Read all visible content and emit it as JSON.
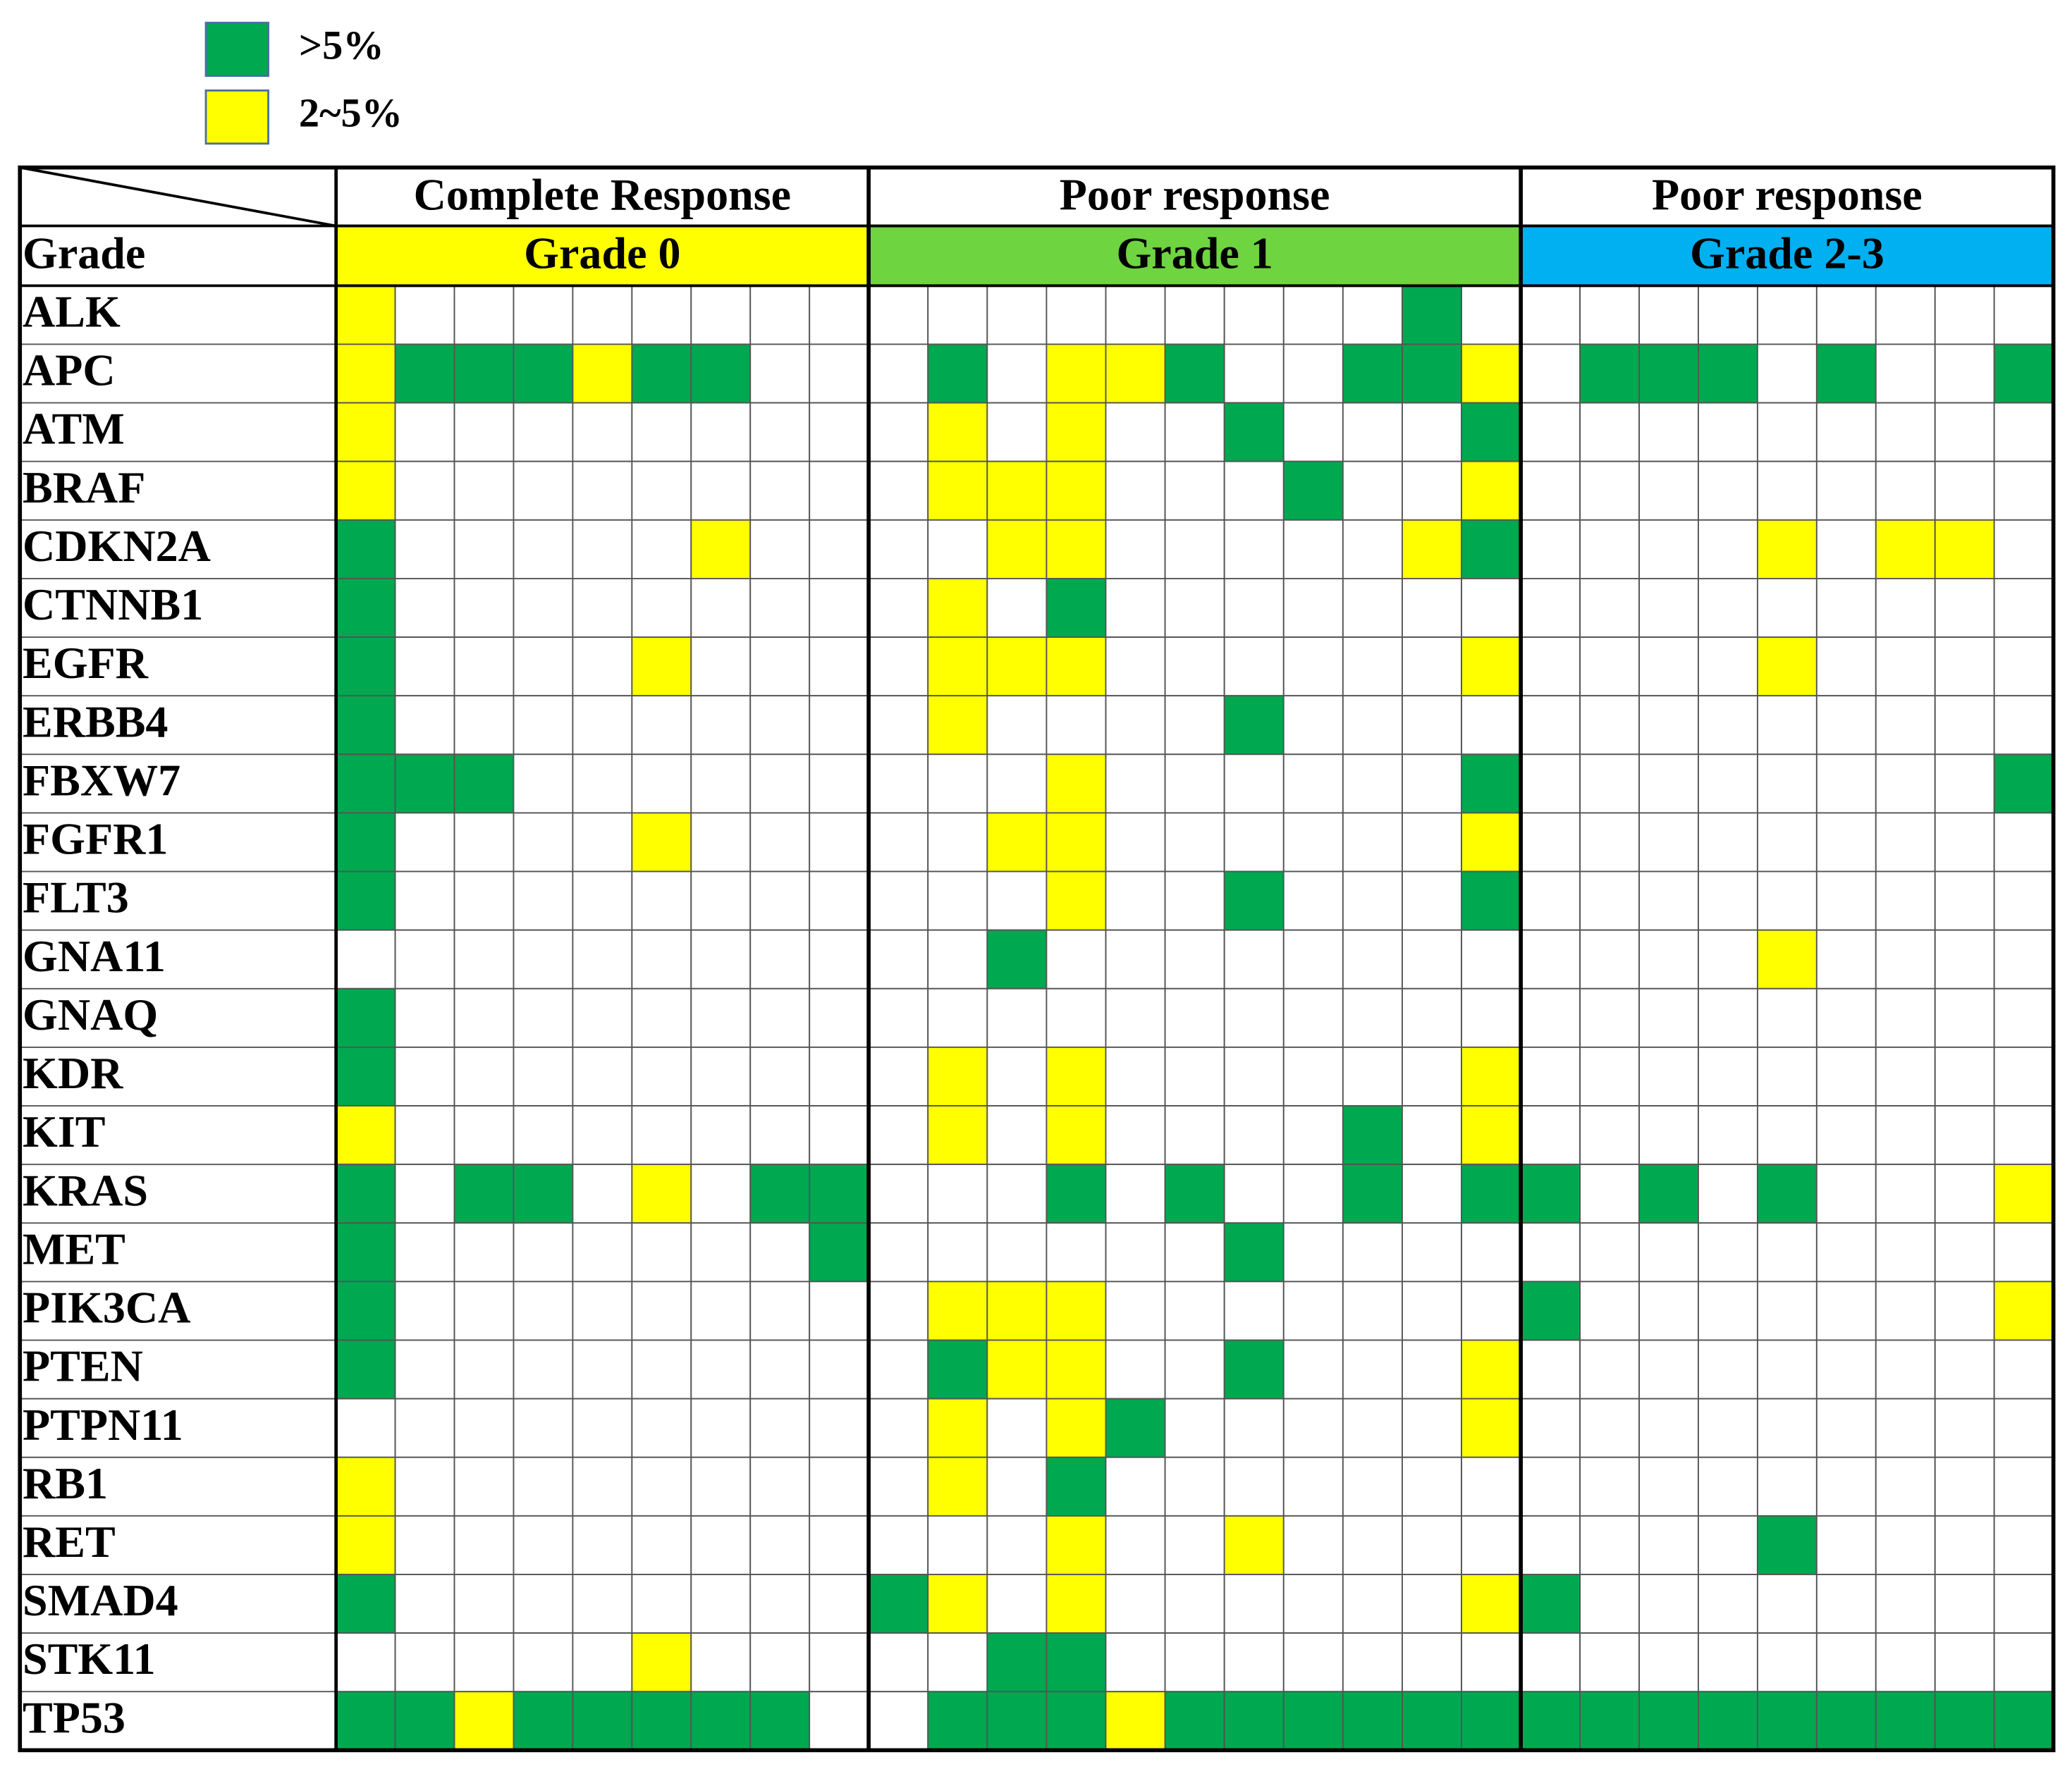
{
  "legend": [
    {
      "label": ">5%",
      "color": "#00a84f"
    },
    {
      "label": "2~5%",
      "color": "#ffff00"
    }
  ],
  "table": {
    "row_header": "Grade",
    "groups": [
      {
        "response": "Complete Response",
        "grade": "Grade 0",
        "color": "#ffff00"
      },
      {
        "response": "Poor response",
        "grade": "Grade 1",
        "color": "#6ed43f"
      },
      {
        "response": "Poor response",
        "grade": "Grade 2-3",
        "color": "#00b0f0"
      }
    ],
    "rows": [
      {
        "gene": "ALK",
        "cells": [
          [
            1,
            null,
            null,
            null,
            null,
            null,
            null,
            null,
            null
          ],
          [
            null,
            null,
            null,
            null,
            null,
            null,
            null,
            null,
            null,
            0,
            null
          ],
          [
            null,
            null,
            null,
            null,
            null,
            null,
            null,
            null,
            null
          ]
        ]
      },
      {
        "gene": "APC",
        "cells": [
          [
            1,
            0,
            0,
            0,
            1,
            0,
            0,
            null,
            null
          ],
          [
            null,
            0,
            null,
            1,
            1,
            0,
            null,
            null,
            0,
            0,
            1
          ],
          [
            null,
            0,
            0,
            0,
            null,
            0,
            null,
            null,
            0
          ]
        ]
      },
      {
        "gene": "ATM",
        "cells": [
          [
            1,
            null,
            null,
            null,
            null,
            null,
            null,
            null,
            null
          ],
          [
            null,
            1,
            null,
            1,
            null,
            null,
            0,
            null,
            null,
            null,
            0
          ],
          [
            null,
            null,
            null,
            null,
            null,
            null,
            null,
            null,
            null
          ]
        ]
      },
      {
        "gene": "BRAF",
        "cells": [
          [
            1,
            null,
            null,
            null,
            null,
            null,
            null,
            null,
            null
          ],
          [
            null,
            1,
            1,
            1,
            null,
            null,
            null,
            0,
            null,
            null,
            1
          ],
          [
            null,
            null,
            null,
            null,
            null,
            null,
            null,
            null,
            null
          ]
        ]
      },
      {
        "gene": "CDKN2A",
        "cells": [
          [
            0,
            null,
            null,
            null,
            null,
            null,
            1,
            null,
            null
          ],
          [
            null,
            null,
            1,
            1,
            null,
            null,
            null,
            null,
            null,
            1,
            0
          ],
          [
            null,
            null,
            null,
            null,
            1,
            null,
            1,
            1,
            null
          ]
        ]
      },
      {
        "gene": "CTNNB1",
        "cells": [
          [
            0,
            null,
            null,
            null,
            null,
            null,
            null,
            null,
            null
          ],
          [
            null,
            1,
            null,
            0,
            null,
            null,
            null,
            null,
            null,
            null,
            null
          ],
          [
            null,
            null,
            null,
            null,
            null,
            null,
            null,
            null,
            null
          ]
        ]
      },
      {
        "gene": "EGFR",
        "cells": [
          [
            0,
            null,
            null,
            null,
            null,
            1,
            null,
            null,
            null
          ],
          [
            null,
            1,
            1,
            1,
            null,
            null,
            null,
            null,
            null,
            null,
            1
          ],
          [
            null,
            null,
            null,
            null,
            1,
            null,
            null,
            null,
            null
          ]
        ]
      },
      {
        "gene": "ERBB4",
        "cells": [
          [
            0,
            null,
            null,
            null,
            null,
            null,
            null,
            null,
            null
          ],
          [
            null,
            1,
            null,
            null,
            null,
            null,
            0,
            null,
            null,
            null,
            null
          ],
          [
            null,
            null,
            null,
            null,
            null,
            null,
            null,
            null,
            null
          ]
        ]
      },
      {
        "gene": "FBXW7",
        "cells": [
          [
            0,
            0,
            0,
            null,
            null,
            null,
            null,
            null,
            null
          ],
          [
            null,
            null,
            null,
            1,
            null,
            null,
            null,
            null,
            null,
            null,
            0
          ],
          [
            null,
            null,
            null,
            null,
            null,
            null,
            null,
            null,
            0
          ]
        ]
      },
      {
        "gene": "FGFR1",
        "cells": [
          [
            0,
            null,
            null,
            null,
            null,
            1,
            null,
            null,
            null
          ],
          [
            null,
            null,
            1,
            1,
            null,
            null,
            null,
            null,
            null,
            null,
            1
          ],
          [
            null,
            null,
            null,
            null,
            null,
            null,
            null,
            null,
            null
          ]
        ]
      },
      {
        "gene": "FLT3",
        "cells": [
          [
            0,
            null,
            null,
            null,
            null,
            null,
            null,
            null,
            null
          ],
          [
            null,
            null,
            null,
            1,
            null,
            null,
            0,
            null,
            null,
            null,
            0
          ],
          [
            null,
            null,
            null,
            null,
            null,
            null,
            null,
            null,
            null
          ]
        ]
      },
      {
        "gene": "GNA11",
        "cells": [
          [
            null,
            null,
            null,
            null,
            null,
            null,
            null,
            null,
            null
          ],
          [
            null,
            null,
            0,
            null,
            null,
            null,
            null,
            null,
            null,
            null,
            null
          ],
          [
            null,
            null,
            null,
            null,
            1,
            null,
            null,
            null,
            null
          ]
        ]
      },
      {
        "gene": "GNAQ",
        "cells": [
          [
            0,
            null,
            null,
            null,
            null,
            null,
            null,
            null,
            null
          ],
          [
            null,
            null,
            null,
            null,
            null,
            null,
            null,
            null,
            null,
            null,
            null
          ],
          [
            null,
            null,
            null,
            null,
            null,
            null,
            null,
            null,
            null
          ]
        ]
      },
      {
        "gene": "KDR",
        "cells": [
          [
            0,
            null,
            null,
            null,
            null,
            null,
            null,
            null,
            null
          ],
          [
            null,
            1,
            null,
            1,
            null,
            null,
            null,
            null,
            null,
            null,
            1
          ],
          [
            null,
            null,
            null,
            null,
            null,
            null,
            null,
            null,
            null
          ]
        ]
      },
      {
        "gene": "KIT",
        "cells": [
          [
            1,
            null,
            null,
            null,
            null,
            null,
            null,
            null,
            null
          ],
          [
            null,
            1,
            null,
            1,
            null,
            null,
            null,
            null,
            0,
            null,
            1
          ],
          [
            null,
            null,
            null,
            null,
            null,
            null,
            null,
            null,
            null
          ]
        ]
      },
      {
        "gene": "KRAS",
        "cells": [
          [
            0,
            null,
            0,
            0,
            null,
            1,
            null,
            0,
            0
          ],
          [
            null,
            null,
            null,
            0,
            null,
            0,
            null,
            null,
            0,
            null,
            0
          ],
          [
            0,
            null,
            0,
            null,
            0,
            null,
            null,
            null,
            1
          ]
        ]
      },
      {
        "gene": "MET",
        "cells": [
          [
            0,
            null,
            null,
            null,
            null,
            null,
            null,
            null,
            0
          ],
          [
            null,
            null,
            null,
            null,
            null,
            null,
            0,
            null,
            null,
            null,
            null
          ],
          [
            null,
            null,
            null,
            null,
            null,
            null,
            null,
            null,
            null
          ]
        ]
      },
      {
        "gene": "PIK3CA",
        "cells": [
          [
            0,
            null,
            null,
            null,
            null,
            null,
            null,
            null,
            null
          ],
          [
            null,
            1,
            1,
            1,
            null,
            null,
            null,
            null,
            null,
            null,
            null
          ],
          [
            0,
            null,
            null,
            null,
            null,
            null,
            null,
            null,
            1
          ]
        ]
      },
      {
        "gene": "PTEN",
        "cells": [
          [
            0,
            null,
            null,
            null,
            null,
            null,
            null,
            null,
            null
          ],
          [
            null,
            0,
            1,
            1,
            null,
            null,
            0,
            null,
            null,
            null,
            1
          ],
          [
            null,
            null,
            null,
            null,
            null,
            null,
            null,
            null,
            null
          ]
        ]
      },
      {
        "gene": "PTPN11",
        "cells": [
          [
            null,
            null,
            null,
            null,
            null,
            null,
            null,
            null,
            null
          ],
          [
            null,
            1,
            null,
            1,
            0,
            null,
            null,
            null,
            null,
            null,
            1
          ],
          [
            null,
            null,
            null,
            null,
            null,
            null,
            null,
            null,
            null
          ]
        ]
      },
      {
        "gene": "RB1",
        "cells": [
          [
            1,
            null,
            null,
            null,
            null,
            null,
            null,
            null,
            null
          ],
          [
            null,
            1,
            null,
            0,
            null,
            null,
            null,
            null,
            null,
            null,
            null
          ],
          [
            null,
            null,
            null,
            null,
            null,
            null,
            null,
            null,
            null
          ]
        ]
      },
      {
        "gene": "RET",
        "cells": [
          [
            1,
            null,
            null,
            null,
            null,
            null,
            null,
            null,
            null
          ],
          [
            null,
            null,
            null,
            1,
            null,
            null,
            1,
            null,
            null,
            null,
            null
          ],
          [
            null,
            null,
            null,
            null,
            0,
            null,
            null,
            null,
            null
          ]
        ]
      },
      {
        "gene": "SMAD4",
        "cells": [
          [
            0,
            null,
            null,
            null,
            null,
            null,
            null,
            null,
            null
          ],
          [
            0,
            1,
            null,
            1,
            null,
            null,
            null,
            null,
            null,
            null,
            1
          ],
          [
            0,
            null,
            null,
            null,
            null,
            null,
            null,
            null,
            null
          ]
        ]
      },
      {
        "gene": "STK11",
        "cells": [
          [
            null,
            null,
            null,
            null,
            null,
            1,
            null,
            null,
            null
          ],
          [
            null,
            null,
            0,
            0,
            null,
            null,
            null,
            null,
            null,
            null,
            null
          ],
          [
            null,
            null,
            null,
            null,
            null,
            null,
            null,
            null,
            null
          ]
        ]
      },
      {
        "gene": "TP53",
        "cells": [
          [
            0,
            0,
            1,
            0,
            0,
            0,
            0,
            0,
            null
          ],
          [
            null,
            0,
            0,
            0,
            1,
            0,
            0,
            0,
            0,
            0,
            0
          ],
          [
            0,
            0,
            0,
            0,
            0,
            0,
            0,
            0,
            0
          ]
        ]
      }
    ]
  }
}
